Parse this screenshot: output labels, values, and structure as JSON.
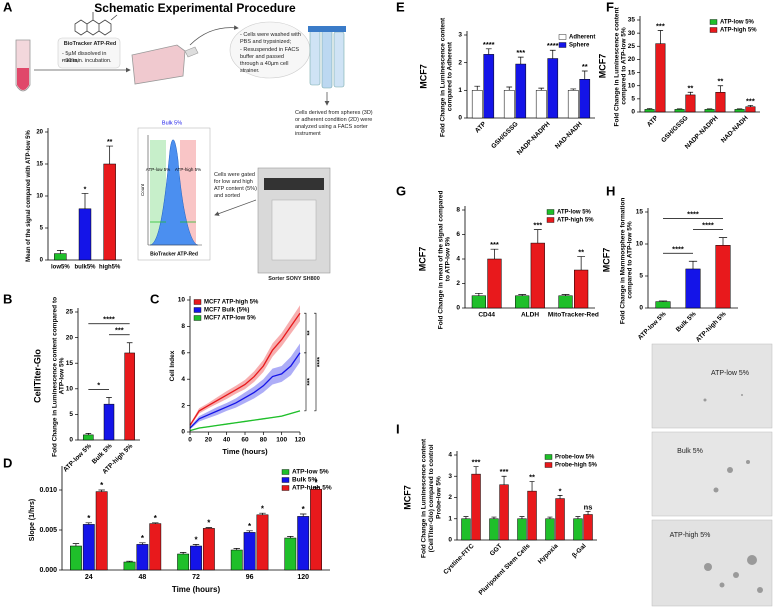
{
  "diagram": {
    "panel": "A",
    "title": "Schematic Experimental Procedure",
    "reagent": {
      "label": "BioTracker ATP-Red",
      "lines": [
        "- 5µM dissolved in media,",
        "- 30 min. incubation."
      ]
    },
    "wash": {
      "lines": [
        "- Cells were washed with PBS and trypsinized;",
        "- Resuspended in FACS buffer and passed through a 40µm cell strainer."
      ]
    },
    "analysis": "Cells derived from spheres (3D) or adherent condition (2D) were analyzed using a FACS sorter instrument",
    "gating": "Cells were gated for low and high ATP content (5%) and sorted",
    "sorter": "Sorter SONY SH800",
    "flow_plot": {
      "bulk": "Bulk 5%",
      "low": "ATP-low 5%",
      "high": "ATP-high 5%",
      "ylabel": "Count",
      "xlabel": "BioTracker ATP-Red"
    }
  },
  "images": {
    "labels": [
      "ATP-low 5%",
      "Bulk 5%",
      "ATP-high 5%"
    ]
  },
  "chart_data": [
    {
      "type": "bar",
      "ylabel": "Mean of the signal compared with ATP-low 5%",
      "categories": [
        "low5%",
        "bulk5%",
        "high5%"
      ],
      "values": [
        1,
        8,
        15
      ],
      "errors": [
        0.5,
        2.4,
        2.8
      ],
      "colors": [
        "#1fbf2a",
        "#1414e8",
        "#e8191c"
      ],
      "significance": [
        null,
        "*",
        "**"
      ],
      "ylim": [
        0,
        20
      ],
      "yticks": [
        0,
        5,
        10,
        15,
        20
      ]
    },
    {
      "type": "bar",
      "panel": "B",
      "side_label": "CellTiter-Glo",
      "ylabel": "Fold Change in Luminescence content compared to ATP-low 5%",
      "categories": [
        "ATP-low 5%",
        "Bulk 5%",
        "ATP-high 5%"
      ],
      "values": [
        1,
        7,
        17
      ],
      "errors": [
        0.3,
        1.3,
        2
      ],
      "colors": [
        "#1fbf2a",
        "#1414e8",
        "#e8191c"
      ],
      "brackets": [
        {
          "between": [
            "ATP-low 5%",
            "Bulk 5%"
          ],
          "label": "*"
        },
        {
          "between": [
            "ATP-low 5%",
            "ATP-high 5%"
          ],
          "label": "****"
        },
        {
          "between": [
            "Bulk 5%",
            "ATP-high 5%"
          ],
          "label": "***"
        }
      ],
      "ylim": [
        0,
        25
      ],
      "yticks": [
        0,
        5,
        10,
        15,
        20,
        25
      ]
    },
    {
      "type": "line",
      "panel": "C",
      "xlabel": "Time (hours)",
      "ylabel": "Cell Index",
      "x": [
        0,
        10,
        20,
        30,
        40,
        50,
        60,
        70,
        80,
        90,
        100,
        110,
        120
      ],
      "series": [
        {
          "name": "MCF7 ATP-high 5%",
          "color": "#e8191c",
          "values": [
            0.5,
            1.6,
            2.0,
            2.4,
            2.8,
            3.2,
            3.6,
            4.2,
            5.0,
            6.2,
            7.0,
            8.0,
            9.0
          ],
          "errors": [
            0.1,
            0.2,
            0.2,
            0.25,
            0.3,
            0.3,
            0.35,
            0.4,
            0.45,
            0.5,
            0.5,
            0.55,
            0.6
          ]
        },
        {
          "name": "MCF7 Bulk (5%)",
          "color": "#1414e8",
          "values": [
            0.3,
            1.0,
            1.3,
            1.6,
            1.9,
            2.2,
            2.6,
            3.0,
            3.5,
            4.2,
            4.4,
            5.0,
            6.0
          ],
          "errors": [
            0.1,
            0.2,
            0.25,
            0.3,
            0.3,
            0.35,
            0.4,
            0.45,
            0.5,
            0.6,
            0.6,
            0.7,
            0.7
          ]
        },
        {
          "name": "MCF7 ATP-low 5%",
          "color": "#1fbf2a",
          "values": [
            0.1,
            0.3,
            0.4,
            0.5,
            0.6,
            0.7,
            0.8,
            0.9,
            1.0,
            1.1,
            1.2,
            1.4,
            1.6
          ],
          "errors": [
            0.05,
            0.05,
            0.05,
            0.05,
            0.05,
            0.05,
            0.05,
            0.05,
            0.05,
            0.05,
            0.05,
            0.05,
            0.05
          ]
        }
      ],
      "brackets": [
        {
          "between": [
            "MCF7 ATP-high 5%",
            "MCF7 Bulk (5%)"
          ],
          "label": "**"
        },
        {
          "between": [
            "MCF7 ATP-high 5%",
            "MCF7 ATP-low 5%"
          ],
          "label": "****"
        },
        {
          "between": [
            "MCF7 Bulk (5%)",
            "MCF7 ATP-low 5%"
          ],
          "label": "***"
        }
      ],
      "legend": "upper left",
      "xlim": [
        0,
        120
      ],
      "xticks": [
        0,
        20,
        40,
        60,
        80,
        100,
        120
      ],
      "ylim": [
        0,
        10
      ],
      "yticks": [
        0,
        2,
        4,
        6,
        8,
        10
      ]
    },
    {
      "type": "bar",
      "panel": "D",
      "xlabel": "Time (hours)",
      "ylabel": "Slope (1/hrs)",
      "categories": [
        24,
        48,
        72,
        96,
        120
      ],
      "series": [
        {
          "name": "ATP-low 5%",
          "color": "#1fbf2a",
          "values": [
            0.003,
            0.001,
            0.002,
            0.0025,
            0.004
          ],
          "errors": [
            0.0003,
            0.0001,
            0.0002,
            0.0002,
            0.0002
          ]
        },
        {
          "name": "Bulk 5%",
          "color": "#1414e8",
          "values": [
            0.0057,
            0.0032,
            0.003,
            0.0047,
            0.0067
          ],
          "errors": [
            0.0002,
            0.0002,
            0.0002,
            0.0002,
            0.0003
          ],
          "significance": [
            "*",
            "*",
            "*",
            "*",
            "*"
          ]
        },
        {
          "name": "ATP-high 5%",
          "color": "#e8191c",
          "values": [
            0.0098,
            0.0058,
            0.0052,
            0.0069,
            0.0101
          ],
          "errors": [
            0.0002,
            0.0001,
            0.0001,
            0.0002,
            0.0002
          ],
          "significance": [
            "*",
            "*",
            "*",
            "*",
            "*"
          ]
        }
      ],
      "legend": "upper right",
      "ylim": [
        0,
        0.0125
      ],
      "yticks": [
        {
          "value": 0,
          "label": "0.000"
        },
        {
          "value": 0.005,
          "label": "0.005"
        },
        {
          "value": 0.01,
          "label": "0.010"
        }
      ]
    },
    {
      "type": "bar",
      "panel": "E",
      "side_label": "MCF7",
      "ylabel": "Fold Change in Luminescence content compared to Adherent",
      "categories": [
        "ATP",
        "GSH/GSSG",
        "NADP-NADPH",
        "NAD-NADH"
      ],
      "series": [
        {
          "name": "Adherent",
          "color": "#ffffff",
          "values": [
            1,
            1,
            1,
            1
          ],
          "errors": [
            0.15,
            0.12,
            0.08,
            0.05
          ]
        },
        {
          "name": "Sphere",
          "color": "#1414e8",
          "values": [
            2.3,
            1.95,
            2.15,
            1.4
          ],
          "errors": [
            0.2,
            0.25,
            0.3,
            0.3
          ],
          "significance": [
            "****",
            "***",
            "****",
            "**"
          ]
        }
      ],
      "legend": "upper right",
      "ylim": [
        0,
        3
      ],
      "yticks": [
        0,
        1,
        2,
        3
      ]
    },
    {
      "type": "bar",
      "panel": "F",
      "side_label": "MCF7",
      "ylabel": "Fold Change in Luminescence content compared to ATP-low 5%",
      "categories": [
        "ATP",
        "GSH/GSSG",
        "NADP-NADPH",
        "NAD-NADH"
      ],
      "series": [
        {
          "name": "ATP-low 5%",
          "color": "#1fbf2a",
          "values": [
            1,
            1,
            1,
            1
          ],
          "errors": [
            0.3,
            0.2,
            0.2,
            0.2
          ]
        },
        {
          "name": "ATP-high 5%",
          "color": "#e8191c",
          "values": [
            26,
            6.5,
            7.5,
            2
          ],
          "errors": [
            5,
            1,
            2.5,
            0.5
          ],
          "significance": [
            "***",
            "**",
            "**",
            "***"
          ]
        }
      ],
      "legend": "upper right",
      "ylim": [
        0,
        35
      ],
      "yticks": [
        0,
        5,
        10,
        15,
        20,
        25,
        30,
        35
      ]
    },
    {
      "type": "bar",
      "panel": "G",
      "side_label": "MCF7",
      "ylabel": "Fold Change in mean of the signal compared to ATP-low 5%",
      "categories": [
        "CD44",
        "ALDH",
        "MitoTracker-Red"
      ],
      "series": [
        {
          "name": "ATP-low 5%",
          "color": "#1fbf2a",
          "values": [
            1,
            1,
            1
          ],
          "errors": [
            0.2,
            0.1,
            0.1
          ]
        },
        {
          "name": "ATP-high 5%",
          "color": "#e8191c",
          "values": [
            4,
            5.3,
            3.1
          ],
          "errors": [
            0.8,
            1.1,
            1.1
          ],
          "significance": [
            "***",
            "***",
            "**"
          ]
        }
      ],
      "legend": "upper right",
      "ylim": [
        0,
        8
      ],
      "yticks": [
        0,
        2,
        4,
        6,
        8
      ]
    },
    {
      "type": "bar",
      "panel": "H",
      "side_label": "MCF7",
      "ylabel": "Fold Change in Mammosphere formation compared to ATP-low 5%",
      "categories": [
        "ATP-low 5%",
        "Bulk 5%",
        "ATP-high 5%"
      ],
      "values": [
        1,
        6.1,
        9.8
      ],
      "errors": [
        0.1,
        1.2,
        1.2
      ],
      "colors": [
        "#1fbf2a",
        "#1414e8",
        "#e8191c"
      ],
      "brackets": [
        {
          "between": [
            "ATP-low 5%",
            "Bulk 5%"
          ],
          "label": "****"
        },
        {
          "between": [
            "ATP-low 5%",
            "ATP-high 5%"
          ],
          "label": "****"
        },
        {
          "between": [
            "Bulk 5%",
            "ATP-high 5%"
          ],
          "label": "****"
        }
      ],
      "ylim": [
        0,
        15
      ],
      "yticks": [
        0,
        5,
        10,
        15
      ]
    },
    {
      "type": "bar",
      "panel": "I",
      "side_label": "MCF7",
      "ylabel": "Fold Change in Luminescence content (CellTiter-Glo) compared to control Probe-low 5%",
      "categories": [
        "Cystine-FITC",
        "GGT",
        "Pluripotent Stem Cells",
        "Hypoxia",
        "β-Gal"
      ],
      "series": [
        {
          "name": "Probe-low 5%",
          "color": "#1fbf2a",
          "values": [
            1,
            1,
            1,
            1,
            1
          ],
          "errors": [
            0.1,
            0.08,
            0.1,
            0.08,
            0.1
          ]
        },
        {
          "name": "Probe-high 5%",
          "color": "#e8191c",
          "values": [
            3.1,
            2.6,
            2.3,
            1.95,
            1.2
          ],
          "errors": [
            0.35,
            0.4,
            0.45,
            0.15,
            0.15
          ],
          "significance": [
            "***",
            "***",
            "**",
            "*",
            "ns"
          ]
        }
      ],
      "legend": "upper right",
      "ylim": [
        0,
        4
      ],
      "yticks": [
        0,
        1,
        2,
        3,
        4
      ]
    }
  ]
}
